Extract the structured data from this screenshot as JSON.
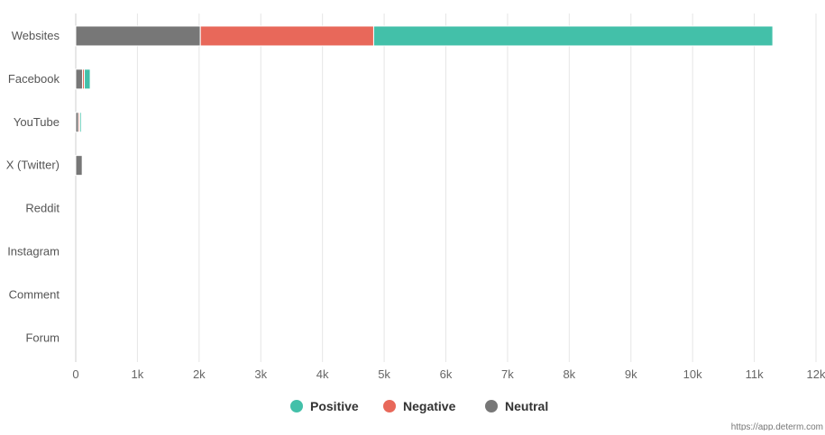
{
  "chart_data": {
    "type": "bar",
    "orientation": "horizontal",
    "stacked": true,
    "title": "",
    "xlabel": "",
    "ylabel": "",
    "categories": [
      "Websites",
      "Facebook",
      "YouTube",
      "X (Twitter)",
      "Reddit",
      "Instagram",
      "Comment",
      "Forum"
    ],
    "series": [
      {
        "name": "Neutral",
        "color": "#777777",
        "values": [
          2020,
          110,
          45,
          105,
          0,
          0,
          0,
          0
        ]
      },
      {
        "name": "Negative",
        "color": "#e8685a",
        "values": [
          2810,
          30,
          20,
          0,
          0,
          0,
          0,
          0
        ]
      },
      {
        "name": "Positive",
        "color": "#43c0a9",
        "values": [
          6470,
          95,
          25,
          0,
          0,
          0,
          0,
          0
        ]
      }
    ],
    "legend_order": [
      "Positive",
      "Negative",
      "Neutral"
    ],
    "xlim": [
      0,
      12000
    ],
    "xticks": [
      0,
      1000,
      2000,
      3000,
      4000,
      5000,
      6000,
      7000,
      8000,
      9000,
      10000,
      11000,
      12000
    ],
    "xtick_labels": [
      "0",
      "1k",
      "2k",
      "3k",
      "4k",
      "5k",
      "6k",
      "7k",
      "8k",
      "9k",
      "10k",
      "11k",
      "12k"
    ],
    "grid": true,
    "legend_position": "bottom-center"
  },
  "credit": "https://app.determ.com"
}
